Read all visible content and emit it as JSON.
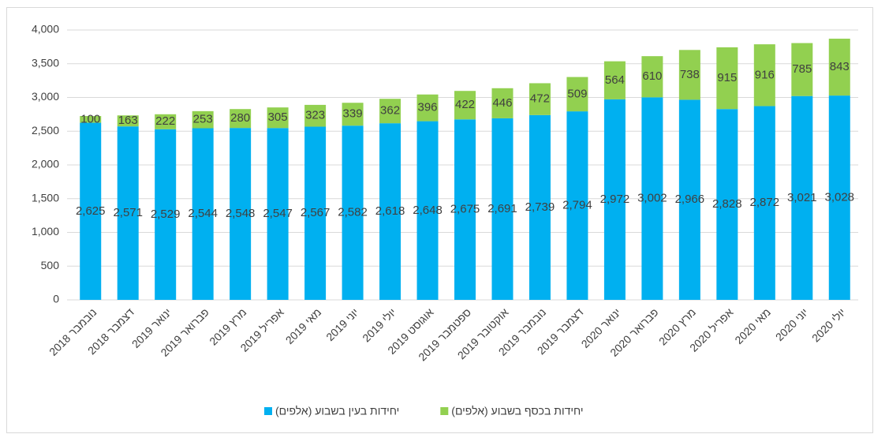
{
  "chart_data": {
    "type": "bar",
    "stacked": true,
    "categories": [
      "נובמבר 2018",
      "דצמבר 2018",
      "ינואר 2019",
      "פברואר 2019",
      "מרץ 2019",
      "אפריל 2019",
      "מאי 2019",
      "יוני 2019",
      "יולי 2019",
      "אוגוסט 2019",
      "ספטמבר 2019",
      "אוקטובר 2019",
      "נובמבר 2019",
      "דצמבר 2019",
      "ינואר 2020",
      "פברואר 2020",
      "מרץ 2020",
      "אפריל 2020",
      "מאי 2020",
      "יוני 2020",
      "יולי 2020"
    ],
    "series": [
      {
        "name": "יחידות בעין בשבוע (אלפים)",
        "color": "#00b0f0",
        "values": [
          2625,
          2571,
          2529,
          2544,
          2548,
          2547,
          2567,
          2582,
          2618,
          2648,
          2675,
          2691,
          2739,
          2794,
          2972,
          3002,
          2966,
          2828,
          2872,
          3021,
          3028
        ],
        "value_labels": [
          "2,625",
          "2,571",
          "2,529",
          "2,544",
          "2,548",
          "2,547",
          "2,567",
          "2,582",
          "2,618",
          "2,648",
          "2,675",
          "2,691",
          "2,739",
          "2,794",
          "2,972",
          "3,002",
          "2,966",
          "2,828",
          "2,872",
          "3,021",
          "3,028"
        ]
      },
      {
        "name": "יחידות בכסף בשבוע (אלפים)",
        "color": "#92d050",
        "values": [
          100,
          163,
          222,
          253,
          280,
          305,
          323,
          339,
          362,
          396,
          422,
          446,
          472,
          509,
          564,
          610,
          738,
          915,
          916,
          785,
          843
        ]
      }
    ],
    "ylim": [
      0,
      4000
    ],
    "yticks": [
      0,
      500,
      {
        "value": 1000,
        "label": "1,000"
      },
      {
        "value": 1500,
        "label": "1,500"
      },
      {
        "value": 2000,
        "label": "2,000"
      },
      {
        "value": 2500,
        "label": "2,500"
      },
      {
        "value": 3000,
        "label": "3,000"
      },
      {
        "value": 3500,
        "label": "3,500"
      },
      {
        "value": 4000,
        "label": "4,000"
      }
    ],
    "grid": true,
    "legend": "bottom"
  }
}
